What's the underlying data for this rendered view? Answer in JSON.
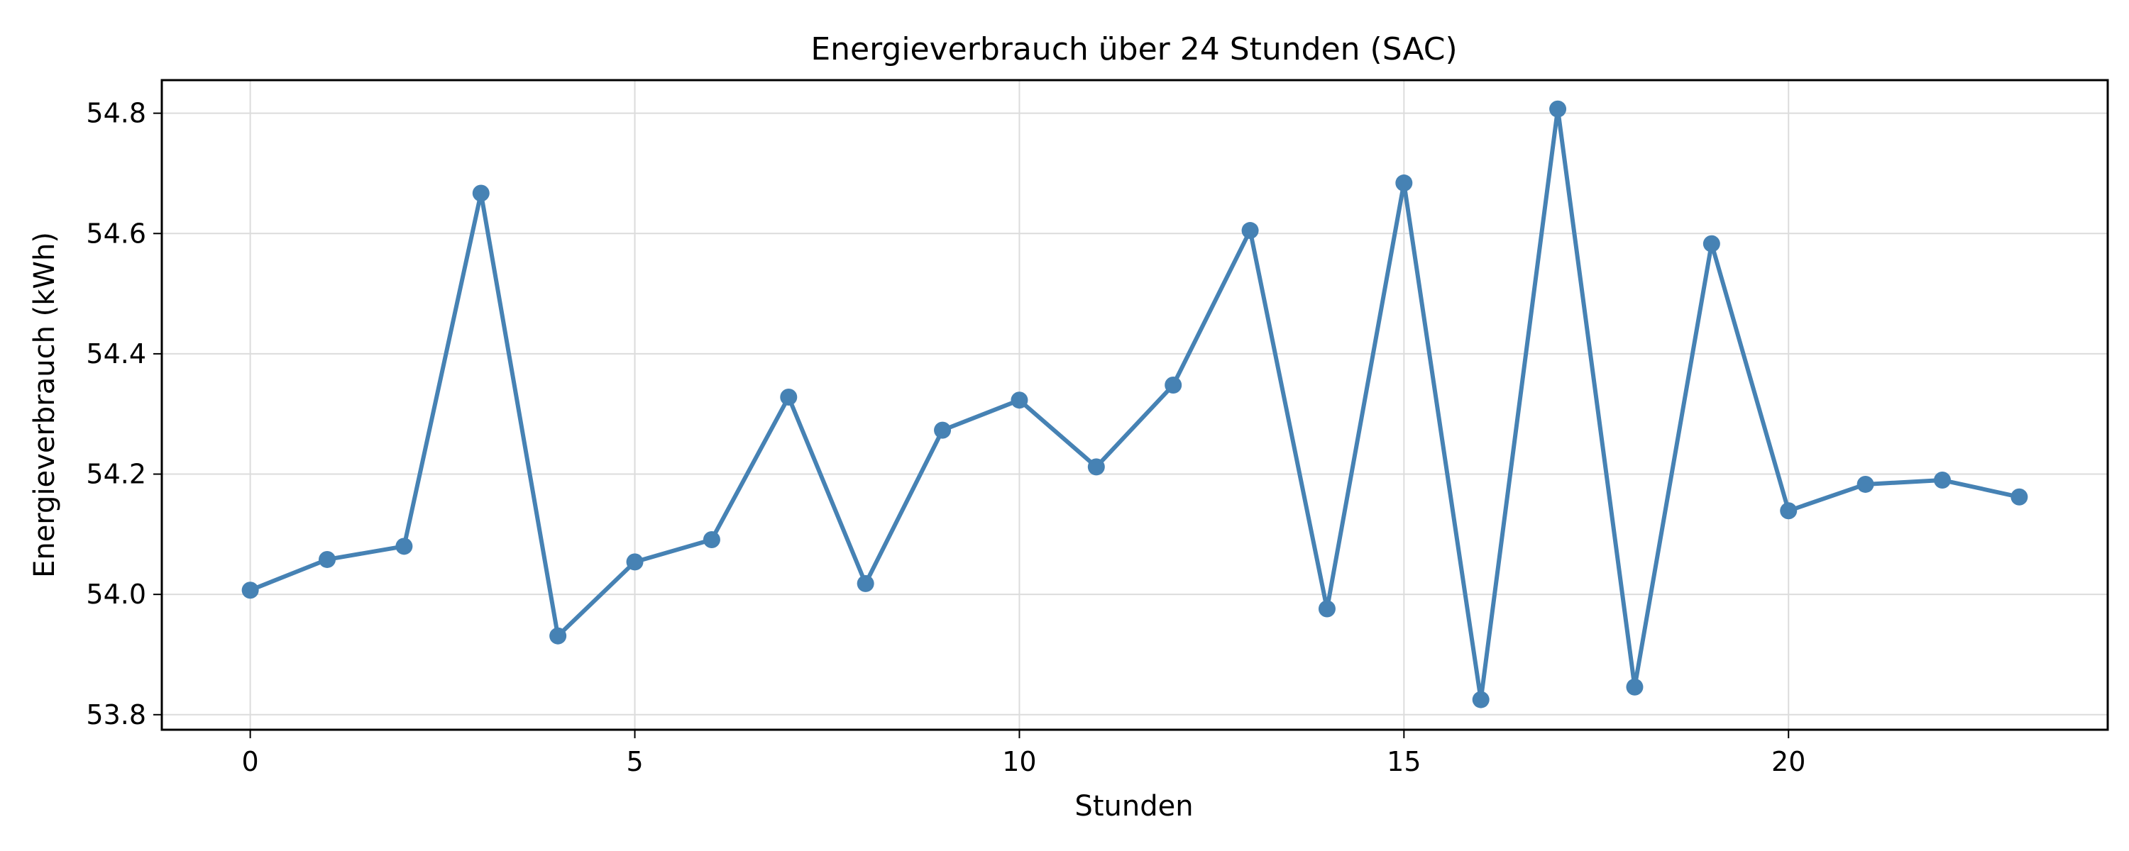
{
  "chart_data": {
    "type": "line",
    "title": "Energieverbrauch über 24 Stunden (SAC)",
    "xlabel": "Stunden",
    "ylabel": "Energieverbrauch (kWh)",
    "xlim": [
      -1.15,
      24.15
    ],
    "ylim": [
      53.775,
      54.855
    ],
    "xticks": [
      0,
      5,
      10,
      15,
      20
    ],
    "yticks": [
      53.8,
      54.0,
      54.2,
      54.4,
      54.6,
      54.8
    ],
    "xtick_labels": [
      "0",
      "5",
      "10",
      "15",
      "20"
    ],
    "ytick_labels": [
      "53.8",
      "54.0",
      "54.2",
      "54.4",
      "54.6",
      "54.8"
    ],
    "grid": true,
    "series": [
      {
        "color": "#4682b4",
        "marker": "circle",
        "x": [
          0,
          1,
          2,
          3,
          4,
          5,
          6,
          7,
          8,
          9,
          10,
          11,
          12,
          13,
          14,
          15,
          16,
          17,
          18,
          19,
          20,
          21,
          22,
          23
        ],
        "y": [
          54.007,
          54.058,
          54.08,
          54.667,
          53.931,
          54.054,
          54.091,
          54.328,
          54.018,
          54.273,
          54.323,
          54.212,
          54.348,
          54.605,
          53.976,
          54.684,
          53.825,
          54.807,
          53.846,
          54.583,
          54.139,
          54.183,
          54.19,
          54.162
        ]
      }
    ]
  }
}
